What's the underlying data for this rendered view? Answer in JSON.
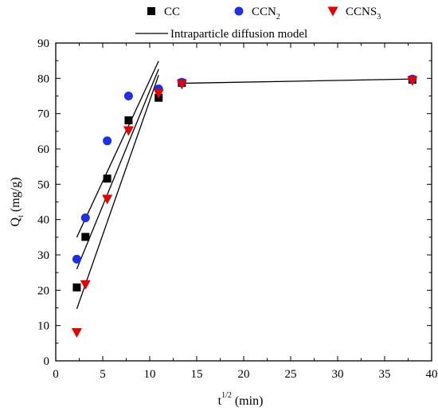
{
  "chart_data": {
    "type": "scatter",
    "xlabel": {
      "base": "t",
      "sup": "1/2",
      "unit": "(min)"
    },
    "ylabel": {
      "base": "Q",
      "sub": "t",
      "unit": "(mg/g)"
    },
    "xlim": [
      0,
      40
    ],
    "ylim": [
      0,
      90
    ],
    "xticks": [
      0,
      5,
      10,
      15,
      20,
      25,
      30,
      35,
      40
    ],
    "yticks": [
      0,
      10,
      20,
      30,
      40,
      50,
      60,
      70,
      80,
      90
    ],
    "grid": false,
    "legend_position": "top",
    "series": [
      {
        "name": "CC",
        "name_sub": "",
        "marker": "square",
        "color": "#000000",
        "points": [
          [
            2.24,
            20.8
          ],
          [
            3.16,
            35.1
          ],
          [
            5.48,
            51.6
          ],
          [
            7.75,
            68.1
          ],
          [
            10.95,
            74.5
          ],
          [
            13.42,
            78.7
          ],
          [
            37.95,
            79.6
          ]
        ]
      },
      {
        "name": "CCN",
        "name_sub": "2",
        "marker": "circle",
        "color": "#1f2fe6",
        "points": [
          [
            2.24,
            28.8
          ],
          [
            3.16,
            40.5
          ],
          [
            5.48,
            62.3
          ],
          [
            7.75,
            75.0
          ],
          [
            10.95,
            77.0
          ],
          [
            13.42,
            78.9
          ],
          [
            37.95,
            79.8
          ]
        ]
      },
      {
        "name": "CCNS",
        "name_sub": "3",
        "marker": "triangle-down",
        "color": "#e60000",
        "points": [
          [
            2.24,
            8.0
          ],
          [
            3.16,
            21.6
          ],
          [
            5.48,
            45.8
          ],
          [
            7.75,
            65.2
          ],
          [
            10.95,
            75.7
          ],
          [
            13.42,
            78.3
          ],
          [
            37.95,
            79.3
          ]
        ]
      }
    ],
    "fit_model": {
      "name": "Intraparticle diffusion model",
      "color": "#000000",
      "lines": [
        [
          [
            2.24,
            35.0
          ],
          [
            10.95,
            84.9
          ]
        ],
        [
          [
            2.24,
            26.0
          ],
          [
            10.95,
            82.6
          ]
        ],
        [
          [
            2.24,
            14.7
          ],
          [
            10.95,
            80.9
          ]
        ],
        [
          [
            13.42,
            78.6
          ],
          [
            37.95,
            79.8
          ]
        ]
      ]
    }
  }
}
